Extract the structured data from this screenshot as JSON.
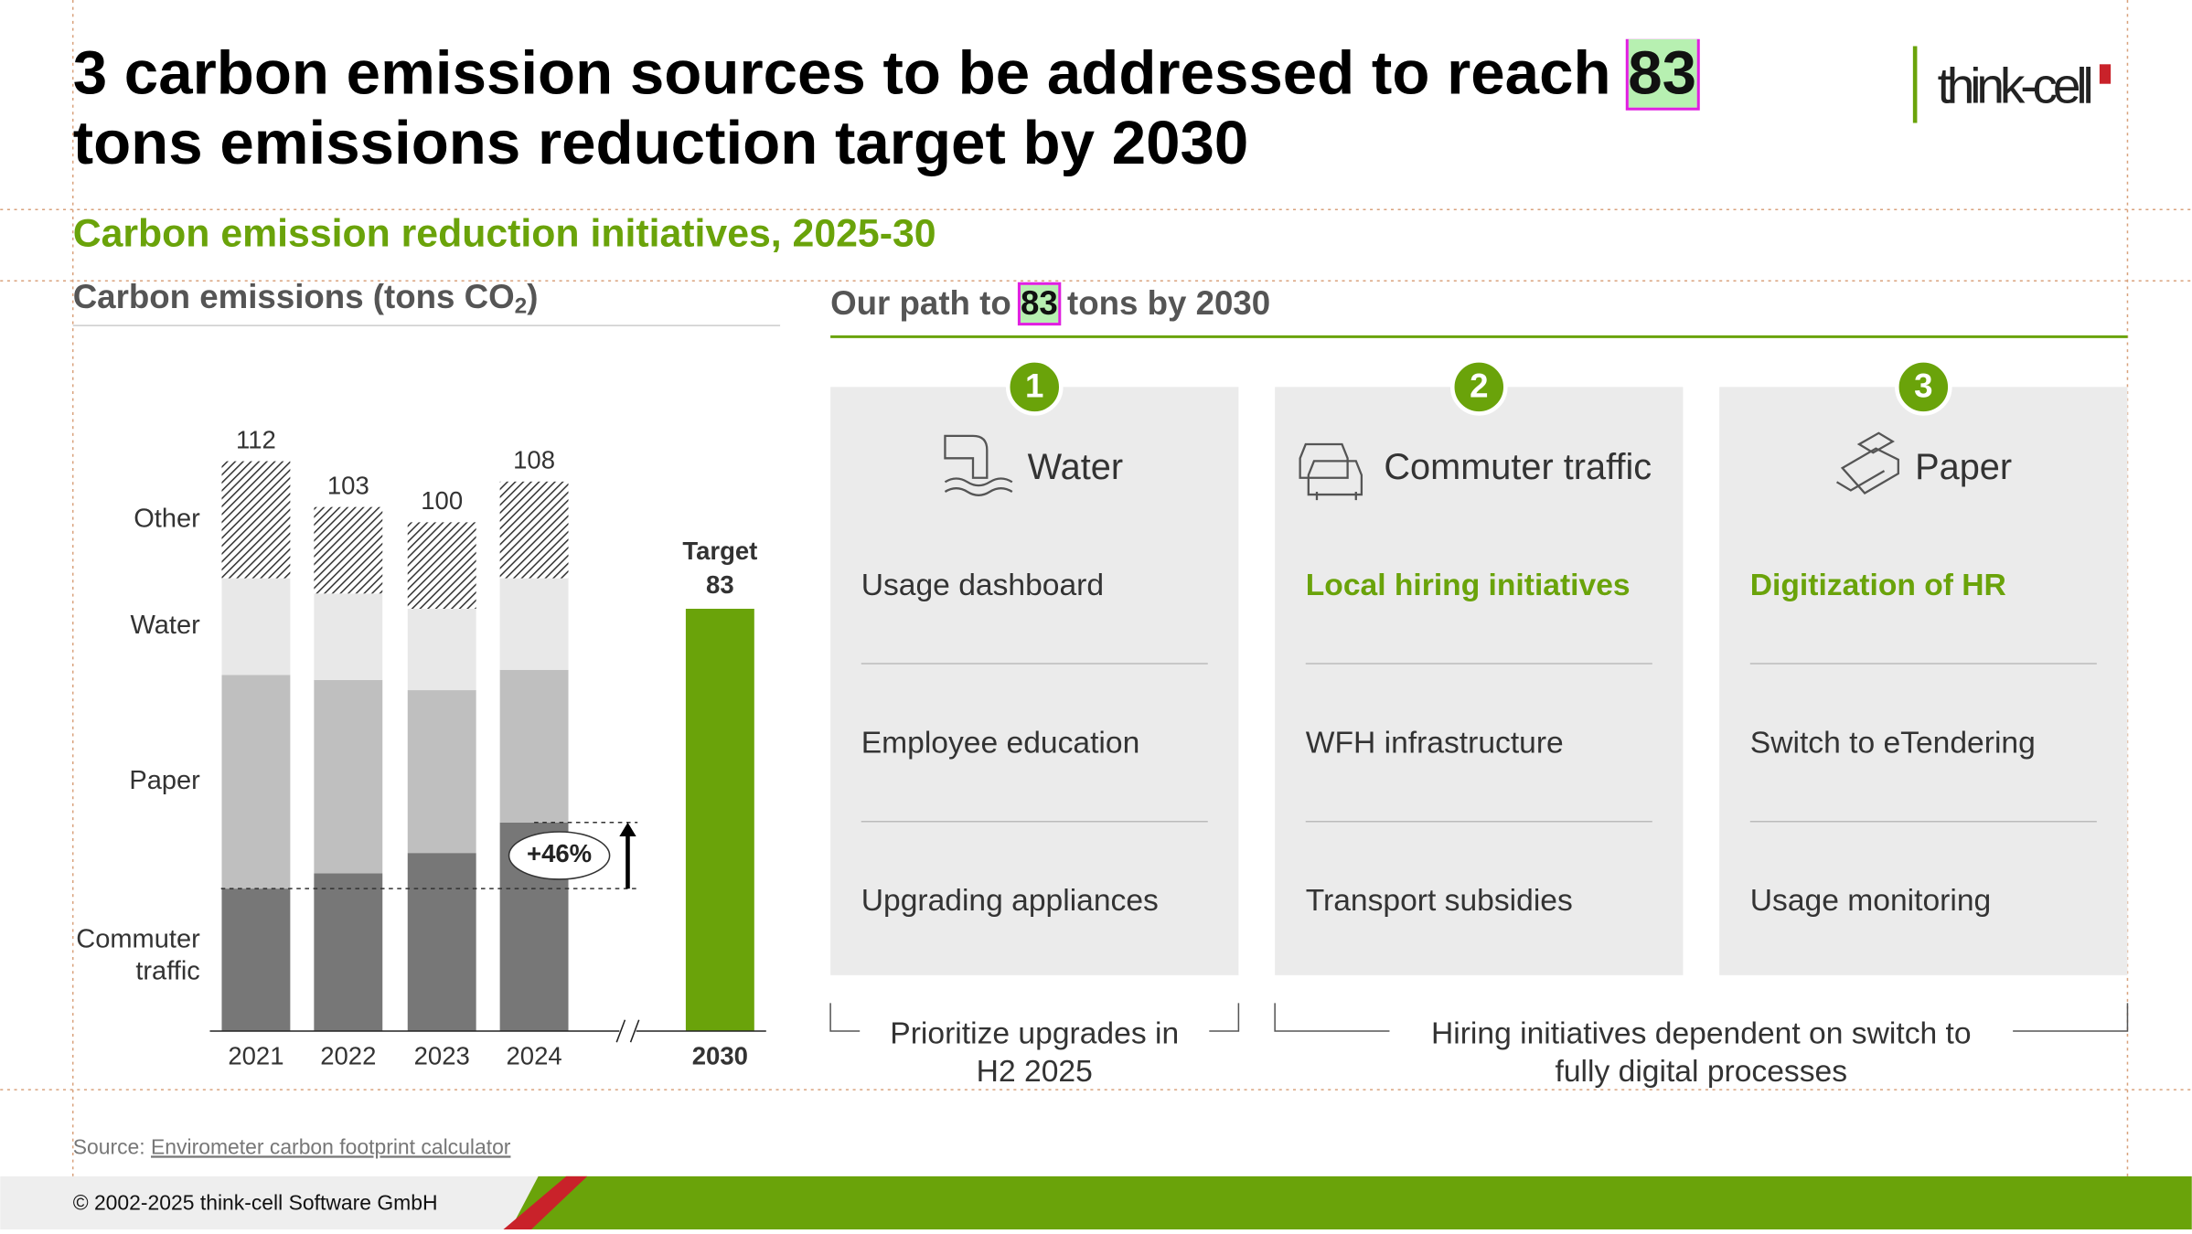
{
  "title": [
    "3 carbon emission sources to be addressed to reach",
    "83",
    "tons emissions reduction target by 2030"
  ],
  "subtitle": "Carbon emission reduction initiatives, 2025-30",
  "logo": "think-cell",
  "chart_data": {
    "type": "bar",
    "stacked": true,
    "title": [
      "Carbon emissions (tons CO",
      "2",
      ")"
    ],
    "categories": [
      "2021",
      "2022",
      "2023",
      "2024",
      "2030"
    ],
    "series": [
      {
        "name": "Commuter traffic",
        "color": "#777777",
        "values": [
          28,
          31,
          35,
          41,
          null
        ]
      },
      {
        "name": "Paper",
        "color": "#bfbfbf",
        "values": [
          42,
          38,
          32,
          30,
          null
        ]
      },
      {
        "name": "Water",
        "color": "#e8e8e8",
        "values": [
          19,
          17,
          16,
          18,
          null
        ]
      },
      {
        "name": "Other",
        "color": "#333333",
        "pattern": "hatch",
        "values": [
          23,
          17,
          17,
          19,
          null
        ]
      },
      {
        "name": "Target",
        "color": "#6aa30a",
        "values": [
          null,
          null,
          null,
          null,
          83
        ]
      }
    ],
    "totals": [
      112,
      103,
      100,
      108,
      null
    ],
    "annotation": "+46%",
    "ylim": [
      0,
      120
    ]
  },
  "path": {
    "title": [
      "Our path to",
      "83",
      "tons by 2030"
    ],
    "cards": [
      {
        "number": "1",
        "name": "Water",
        "items": [
          "Usage dashboard",
          "Employee education",
          "Upgrading appliances"
        ],
        "highlighted": [
          false,
          false,
          false
        ]
      },
      {
        "number": "2",
        "name": "Commuter traffic",
        "items": [
          "Local hiring initiatives",
          "WFH infrastructure",
          "Transport subsidies"
        ],
        "highlighted": [
          true,
          false,
          false
        ]
      },
      {
        "number": "3",
        "name": "Paper",
        "items": [
          "Digitization of HR",
          "Switch to eTendering",
          "Usage monitoring"
        ],
        "highlighted": [
          true,
          false,
          false
        ]
      }
    ],
    "notes": [
      "Prioritize upgrades in H2 2025",
      "Hiring initiatives dependent on switch to fully digital processes"
    ]
  },
  "source": [
    "Source:",
    "Envirometer carbon footprint calculator"
  ],
  "footer": "© 2002-2025 think-cell Software GmbH"
}
